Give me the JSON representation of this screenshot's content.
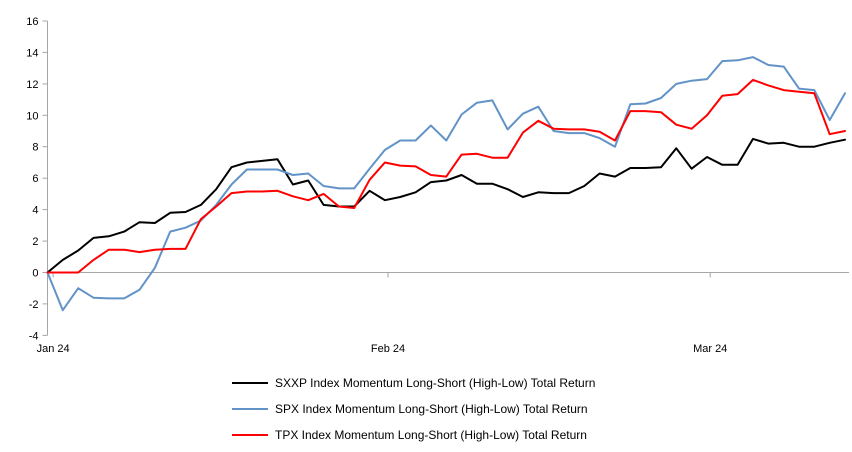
{
  "chart_data": {
    "type": "line",
    "title": "",
    "x_ticks": [
      {
        "label": "Jan 24",
        "pos": 0.007
      },
      {
        "label": "Feb 24",
        "pos": 0.427
      },
      {
        "label": "Mar 24",
        "pos": 0.831
      }
    ],
    "y_ticks": [
      16,
      14,
      12,
      10,
      8,
      6,
      4,
      2,
      0,
      -2,
      -4
    ],
    "ylim": [
      -4,
      16
    ],
    "ytick_step": 2,
    "grid": "zero-line-only",
    "legend_position": "bottom",
    "axis_color": "#a6a6a6",
    "label_color": "#000000",
    "series": [
      {
        "id": "sxxp",
        "name": "SXXP Index Momentum Long-Short (High-Low) Total Return",
        "color": "#000000",
        "values": [
          0,
          0.8,
          1.4,
          2.2,
          2.3,
          2.6,
          3.2,
          3.15,
          3.8,
          3.85,
          4.3,
          5.3,
          6.7,
          7.0,
          7.1,
          7.2,
          5.6,
          5.85,
          4.3,
          4.2,
          4.2,
          5.2,
          4.6,
          4.8,
          5.1,
          5.75,
          5.85,
          6.2,
          5.65,
          5.65,
          5.3,
          4.8,
          5.1,
          5.05,
          5.05,
          5.5,
          6.3,
          6.1,
          6.65,
          6.65,
          6.7,
          7.9,
          6.6,
          7.35,
          6.85,
          6.85,
          8.5,
          8.2,
          8.25,
          8.0,
          8.0,
          8.25,
          8.45
        ]
      },
      {
        "id": "spx",
        "name": "SPX Index Momentum Long-Short (High-Low) Total Return",
        "color": "#6293c8",
        "values": [
          0,
          -2.4,
          -1.0,
          -1.6,
          -1.65,
          -1.65,
          -1.1,
          0.3,
          2.6,
          2.85,
          3.3,
          4.3,
          5.6,
          6.55,
          6.55,
          6.55,
          6.2,
          6.3,
          5.5,
          5.35,
          5.35,
          6.6,
          7.8,
          8.4,
          8.4,
          9.35,
          8.4,
          10.05,
          10.8,
          10.95,
          9.1,
          10.1,
          10.55,
          9.0,
          8.87,
          8.87,
          8.55,
          8.0,
          10.7,
          10.75,
          11.1,
          12.0,
          12.2,
          12.3,
          13.45,
          13.5,
          13.7,
          13.2,
          13.1,
          11.7,
          11.6,
          9.7,
          11.4
        ]
      },
      {
        "id": "tpx",
        "name": "TPX Index Momentum Long-Short (High-Low) Total Return",
        "color": "#fe0000",
        "values": [
          0,
          0,
          0,
          0.8,
          1.45,
          1.45,
          1.3,
          1.45,
          1.5,
          1.5,
          3.4,
          4.2,
          5.05,
          5.15,
          5.15,
          5.2,
          4.85,
          4.6,
          5.0,
          4.2,
          4.1,
          5.9,
          7.0,
          6.8,
          6.75,
          6.2,
          6.1,
          7.5,
          7.55,
          7.3,
          7.3,
          8.9,
          9.65,
          9.15,
          9.1,
          9.1,
          8.95,
          8.4,
          10.27,
          10.27,
          10.2,
          9.4,
          9.15,
          10.0,
          11.25,
          11.35,
          12.25,
          11.9,
          11.6,
          11.5,
          11.4,
          8.8,
          9.0
        ]
      }
    ]
  }
}
